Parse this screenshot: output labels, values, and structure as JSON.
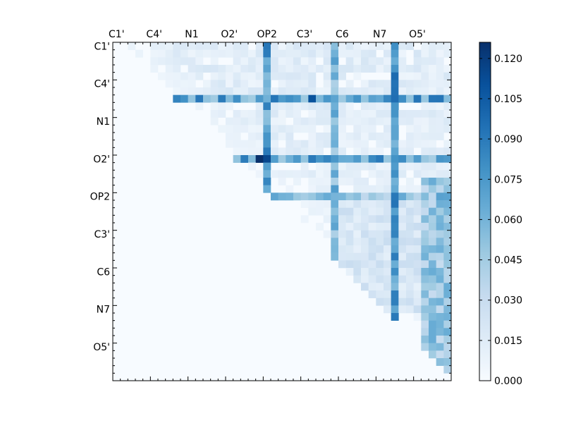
{
  "chart_data": {
    "type": "heatmap",
    "title": "",
    "xlabel": "",
    "ylabel": "",
    "x_tick_labels": [
      "C1'",
      "C4'",
      "N1",
      "O2'",
      "OP2",
      "C3'",
      "C6",
      "N7",
      "O5'"
    ],
    "y_tick_labels": [
      "C1'",
      "C4'",
      "N1",
      "O2'",
      "OP2",
      "C3'",
      "C6",
      "N7",
      "O5'"
    ],
    "matrix_size": 45,
    "tick_label_step": 5,
    "triangle": "upper",
    "colormap": [
      "#f7fbff",
      "#deebf7",
      "#c6dbef",
      "#9ecae1",
      "#6baed6",
      "#4292c6",
      "#2171b5",
      "#08519c",
      "#08306b"
    ],
    "vmin": 0.0,
    "vmax": 0.126,
    "colorbar_ticks": [
      "0.000",
      "0.015",
      "0.030",
      "0.045",
      "0.060",
      "0.075",
      "0.090",
      "0.105",
      "0.120"
    ],
    "strong_columns": [
      {
        "index": 20,
        "value": 0.095
      },
      {
        "index": 29,
        "value": 0.075
      },
      {
        "index": 37,
        "value": 0.1
      }
    ],
    "strong_rows": [
      {
        "index": 7,
        "value": 0.1
      },
      {
        "index": 15,
        "value": 0.095
      },
      {
        "index": 20,
        "value": 0.075
      }
    ],
    "peak_cells": [
      {
        "row": 15,
        "col": 19,
        "value": 0.126
      },
      {
        "row": 15,
        "col": 20,
        "value": 0.115
      },
      {
        "row": 7,
        "col": 26,
        "value": 0.11
      }
    ]
  }
}
